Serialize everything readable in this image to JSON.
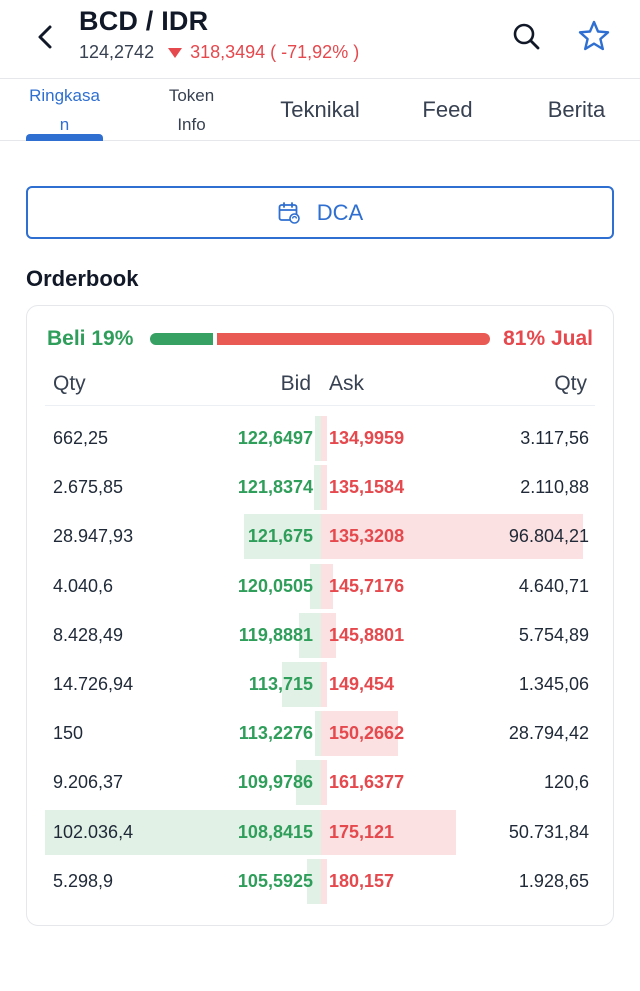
{
  "header": {
    "title": "BCD / IDR",
    "price": "124,2742",
    "change": "318,3494 ( -71,92% )",
    "change_direction": "down",
    "colors": {
      "down": "#e5484d",
      "up": "#2f9e5a",
      "accent": "#2e6fd1"
    }
  },
  "tabs": [
    {
      "lines": [
        "Ringkasa",
        "n"
      ],
      "active": true
    },
    {
      "lines": [
        "Token",
        "Info"
      ],
      "active": false
    },
    {
      "lines": [
        "Teknikal"
      ],
      "active": false
    },
    {
      "lines": [
        "Feed"
      ],
      "active": false
    },
    {
      "lines": [
        "Berita"
      ],
      "active": false
    }
  ],
  "dca": {
    "label": "DCA",
    "icon": "calendar-repeat-icon"
  },
  "orderbook": {
    "title": "Orderbook",
    "buy_label": "Beli 19%",
    "sell_label": "81% Jual",
    "buy_fraction": 0.19,
    "columns": {
      "bid_qty": "Qty",
      "bid": "Bid",
      "ask": "Ask",
      "ask_qty": "Qty"
    },
    "rows": [
      {
        "bid_qty": "662,25",
        "bid": "122,6497",
        "ask": "134,9959",
        "ask_qty": "3.117,56",
        "bid_depth": 0.012,
        "ask_depth": 0.012
      },
      {
        "bid_qty": "2.675,85",
        "bid": "121,8374",
        "ask": "135,1584",
        "ask_qty": "2.110,88",
        "bid_depth": 0.026,
        "ask_depth": 0.012
      },
      {
        "bid_qty": "28.947,93",
        "bid": "121,675",
        "ask": "135,3208",
        "ask_qty": "96.804,21",
        "bid_depth": 0.28,
        "ask_depth": 0.95
      },
      {
        "bid_qty": "4.040,6",
        "bid": "120,0505",
        "ask": "145,7176",
        "ask_qty": "4.640,71",
        "bid_depth": 0.04,
        "ask_depth": 0.045
      },
      {
        "bid_qty": "8.428,49",
        "bid": "119,8881",
        "ask": "145,8801",
        "ask_qty": "5.754,89",
        "bid_depth": 0.08,
        "ask_depth": 0.055
      },
      {
        "bid_qty": "14.726,94",
        "bid": "113,715",
        "ask": "149,454",
        "ask_qty": "1.345,06",
        "bid_depth": 0.14,
        "ask_depth": 0.012
      },
      {
        "bid_qty": "150",
        "bid": "113,2276",
        "ask": "150,2662",
        "ask_qty": "28.794,42",
        "bid_depth": 0.012,
        "ask_depth": 0.28
      },
      {
        "bid_qty": "9.206,37",
        "bid": "109,9786",
        "ask": "161,6377",
        "ask_qty": "120,6",
        "bid_depth": 0.09,
        "ask_depth": 0.012
      },
      {
        "bid_qty": "102.036,4",
        "bid": "108,8415",
        "ask": "175,121",
        "ask_qty": "50.731,84",
        "bid_depth": 1.0,
        "ask_depth": 0.49
      },
      {
        "bid_qty": "5.298,9",
        "bid": "105,5925",
        "ask": "180,157",
        "ask_qty": "1.928,65",
        "bid_depth": 0.05,
        "ask_depth": 0.012
      }
    ]
  }
}
